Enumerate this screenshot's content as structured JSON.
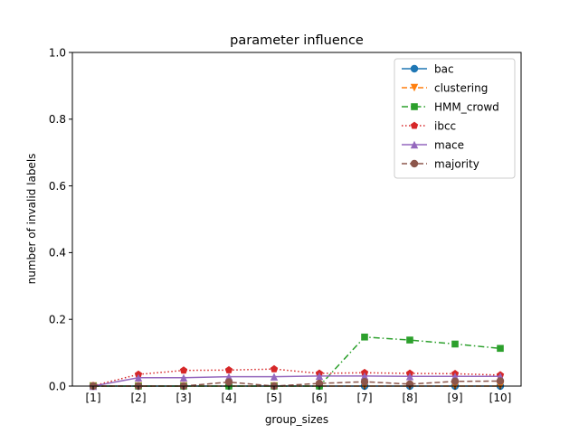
{
  "chart_data": {
    "type": "line",
    "title": "parameter influence",
    "xlabel": "group_sizes",
    "ylabel": "number of invalid labels",
    "categories": [
      "[1]",
      "[2]",
      "[3]",
      "[4]",
      "[5]",
      "[6]",
      "[7]",
      "[8]",
      "[9]",
      "[10]"
    ],
    "ylim": [
      0,
      1.0
    ],
    "yticks": [
      "0.0",
      "0.2",
      "0.4",
      "0.6",
      "0.8",
      "1.0"
    ],
    "grid": false,
    "legend_position": "top-right",
    "series": [
      {
        "name": "bac",
        "color": "#1f77b4",
        "marker": "circle",
        "dash": "solid",
        "values": [
          0.0,
          0.0,
          0.0,
          0.0,
          0.0,
          0.0,
          0.0,
          0.0,
          0.0,
          0.0
        ]
      },
      {
        "name": "clustering",
        "color": "#ff7f0e",
        "marker": "triangle-down",
        "dash": "dashed",
        "values": [
          0.0,
          0.0,
          0.0,
          0.0,
          0.0,
          0.0,
          0.0,
          0.0,
          0.0,
          0.0
        ]
      },
      {
        "name": "HMM_crowd",
        "color": "#2ca02c",
        "marker": "square",
        "dash": "dashdot",
        "values": [
          0.0,
          0.0,
          0.0,
          0.0,
          0.0,
          0.0,
          0.147,
          0.138,
          0.126,
          0.113
        ]
      },
      {
        "name": "ibcc",
        "color": "#d62728",
        "marker": "pentagon",
        "dash": "dotted",
        "values": [
          0.001,
          0.035,
          0.047,
          0.048,
          0.051,
          0.038,
          0.04,
          0.038,
          0.037,
          0.033
        ]
      },
      {
        "name": "mace",
        "color": "#9467bd",
        "marker": "triangle-up",
        "dash": "solid",
        "values": [
          0.0,
          0.025,
          0.025,
          0.028,
          0.028,
          0.03,
          0.03,
          0.029,
          0.029,
          0.029
        ]
      },
      {
        "name": "majority",
        "color": "#8c564b",
        "marker": "circle",
        "dash": "dashed",
        "values": [
          0.0,
          0.0,
          0.0,
          0.012,
          0.0,
          0.008,
          0.013,
          0.006,
          0.014,
          0.015
        ]
      }
    ]
  }
}
